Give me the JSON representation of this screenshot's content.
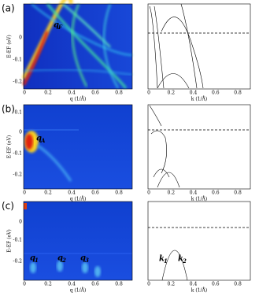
{
  "panels": [
    {
      "label": "(a)",
      "heatmap": {
        "ylabel": "E-EF (eV)",
        "yticks": [
          "0",
          "-0.1",
          "-0.2"
        ],
        "xticks": [
          "0",
          "0.2",
          "0.4",
          "0.6",
          "0.8"
        ],
        "xlabel": "q (1/Å)",
        "annotations": [
          {
            "symbol": "q",
            "sub": "F"
          }
        ]
      },
      "band": {
        "xticks": [
          "0",
          "0.2",
          "0.4",
          "0.6",
          "0.8"
        ],
        "xlabel": "k (1/Å)",
        "annotations": []
      }
    },
    {
      "label": "(b)",
      "heatmap": {
        "ylabel": "E-EF (eV)",
        "yticks": [
          "0.1",
          "0",
          "-0.1",
          "-0.2"
        ],
        "xticks": [
          "0",
          "0.2",
          "0.4",
          "0.6",
          "0.8"
        ],
        "xlabel": "q (1/Å)",
        "annotations": [
          {
            "symbol": "q",
            "sub": "A"
          }
        ]
      },
      "band": {
        "xticks": [
          "0",
          "0.2",
          "0.4",
          "0.6",
          "0.8"
        ],
        "xlabel": "k (1/Å)",
        "annotations": []
      }
    },
    {
      "label": "(c)",
      "heatmap": {
        "ylabel": "E-EF (eV)",
        "yticks": [
          "0",
          "-0.1",
          "-0.2"
        ],
        "xticks": [
          "0",
          "0.2",
          "0.4",
          "0.6",
          "0.8"
        ],
        "xlabel": "q (1/Å)",
        "annotations": [
          {
            "symbol": "q",
            "sub": "1"
          },
          {
            "symbol": "q",
            "sub": "2"
          },
          {
            "symbol": "q",
            "sub": "3"
          }
        ]
      },
      "band": {
        "xticks": [
          "0",
          "0.2",
          "0.4",
          "0.6",
          "0.8"
        ],
        "xlabel": "k (1/Å)",
        "annotations": [
          {
            "symbol": "k",
            "sub": "1"
          },
          {
            "symbol": "k",
            "sub": "2"
          }
        ]
      }
    }
  ]
}
